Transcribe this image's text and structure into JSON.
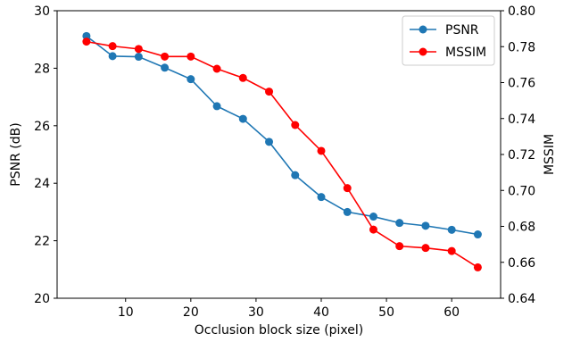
{
  "chart_data": {
    "type": "line",
    "x": [
      4,
      8,
      12,
      16,
      20,
      24,
      28,
      32,
      36,
      40,
      44,
      48,
      52,
      56,
      60,
      64
    ],
    "xlabel": "Occlusion block size (pixel)",
    "xlim": [
      -0.5,
      67.5
    ],
    "xticks": [
      10,
      20,
      30,
      40,
      50,
      60
    ],
    "ylabel_left": "PSNR (dB)",
    "ylim_left": [
      20,
      30
    ],
    "yticks_left": [
      20,
      22,
      24,
      26,
      28,
      30
    ],
    "ylabel_right": "MSSIM",
    "ylim_right": [
      0.64,
      0.8
    ],
    "yticks_right": [
      "0.64",
      "0.66",
      "0.68",
      "0.70",
      "0.72",
      "0.74",
      "0.76",
      "0.78",
      "0.80"
    ],
    "grid": false,
    "legend_position": "top-right",
    "series": [
      {
        "name": "PSNR",
        "axis": "left",
        "color": "#1f77b4",
        "values": [
          29.12,
          28.42,
          28.4,
          28.02,
          27.62,
          26.68,
          26.24,
          25.44,
          24.28,
          23.52,
          23.0,
          22.84,
          22.62,
          22.52,
          22.38,
          22.22
        ]
      },
      {
        "name": "MSSIM",
        "axis": "right",
        "color": "#ff0000",
        "values": [
          0.7828,
          0.7803,
          0.7787,
          0.7745,
          0.7745,
          0.7677,
          0.7626,
          0.755,
          0.7364,
          0.722,
          0.7013,
          0.6782,
          0.669,
          0.668,
          0.6663,
          0.6572
        ]
      }
    ]
  }
}
